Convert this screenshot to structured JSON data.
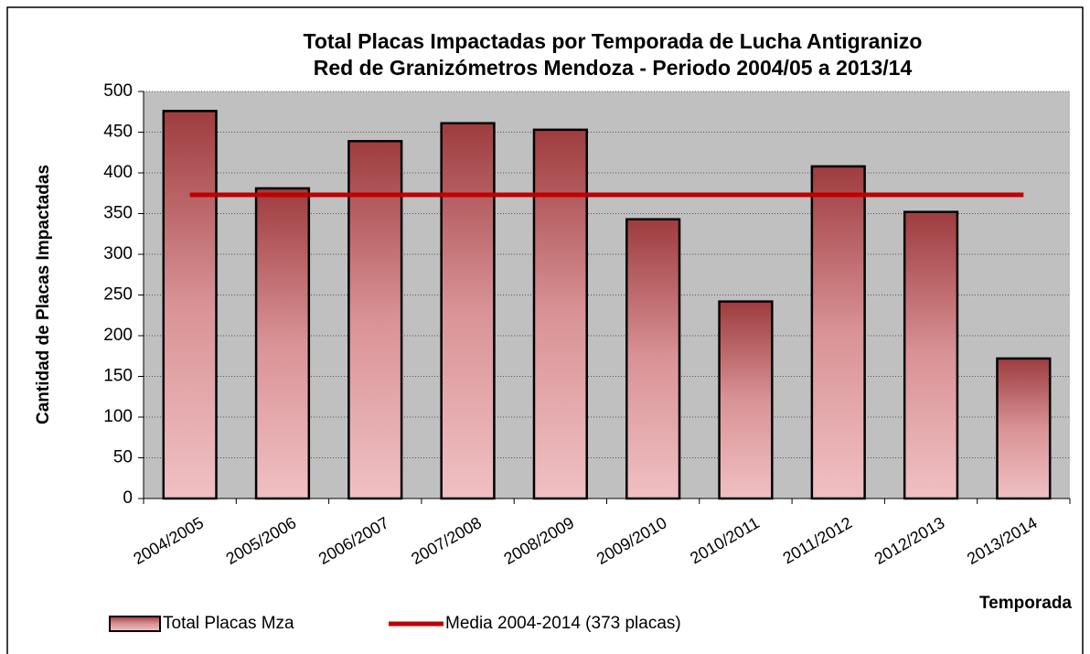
{
  "chart_data": {
    "type": "bar",
    "title": "Total Placas Impactadas por Temporada de Lucha Antigranizo",
    "subtitle": "Red de Granizómetros Mendoza - Periodo 2004/05 a 2013/14",
    "y_label": "Cantidad de Placas Impactadas",
    "x_label": "Temporada",
    "categories": [
      "2004/2005",
      "2005/2006",
      "2006/2007",
      "2007/2008",
      "2008/2009",
      "2009/2010",
      "2010/2011",
      "2011/2012",
      "2012/2013",
      "2013/2014"
    ],
    "series": [
      {
        "name": "Total Placas Mza",
        "type": "bar",
        "color": "#9e3c3f",
        "values": [
          476,
          381,
          439,
          461,
          453,
          343,
          242,
          408,
          352,
          172
        ]
      },
      {
        "name": "Media 2004-2014 (373 placas)",
        "type": "line",
        "color": "#c00000",
        "values": [
          373,
          373,
          373,
          373,
          373,
          373,
          373,
          373,
          373,
          373
        ]
      }
    ],
    "ylim": [
      0,
      500
    ],
    "yticks": [
      0,
      50,
      100,
      150,
      200,
      250,
      300,
      350,
      400,
      450,
      500
    ],
    "grid": true
  }
}
